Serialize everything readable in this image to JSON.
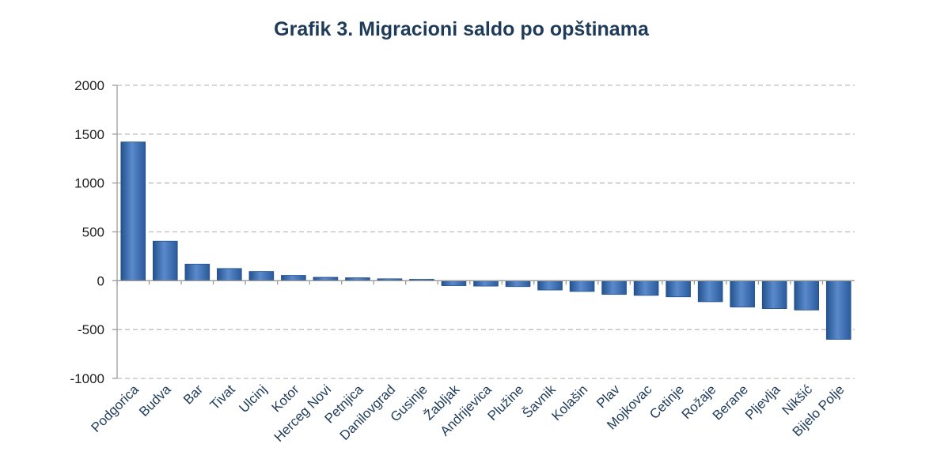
{
  "chart_data": {
    "type": "bar",
    "title": "Grafik 3. Migracioni saldo po opštinama",
    "xlabel": "",
    "ylabel": "",
    "ylim": [
      -1000,
      2000
    ],
    "yticks": [
      2000,
      1500,
      1000,
      500,
      0,
      -500,
      -1000
    ],
    "grid": true,
    "categories": [
      "Podgorica",
      "Budva",
      "Bar",
      "Tivat",
      "Ulcinj",
      "Kotor",
      "Herceg Novi",
      "Petnjica",
      "Danilovgrad",
      "Gusinje",
      "Žabljak",
      "Andrijevica",
      "Plužine",
      "Šavnik",
      "Kolašin",
      "Plav",
      "Mojkovac",
      "Cetinje",
      "Rožaje",
      "Berane",
      "Pljevlja",
      "Nikšić",
      "Bijelo Polje"
    ],
    "values": [
      1420,
      405,
      170,
      125,
      95,
      55,
      35,
      30,
      20,
      15,
      -50,
      -55,
      -60,
      -95,
      -110,
      -140,
      -150,
      -165,
      -215,
      -270,
      -285,
      -300,
      -600
    ],
    "colors": {
      "bar": "#3d72b4",
      "bar_dark": "#23508c",
      "bar_light": "#6e9ad2"
    }
  }
}
